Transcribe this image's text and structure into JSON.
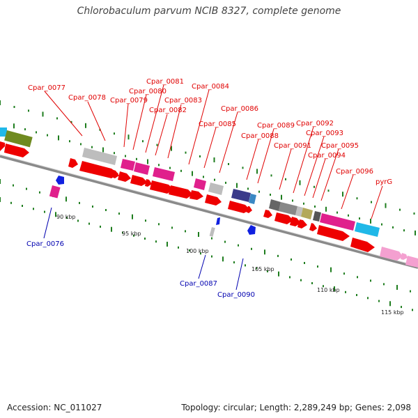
{
  "title": "Chlorobaculum parvum NCIB 8327, complete genome",
  "accession": "Accession: NC_011027",
  "topology": "Topology: circular; Length: 2,289,249 bp; Genes: 2,098",
  "colors": {
    "backbone": "#8a8a8a",
    "tick": "#1e7d1e",
    "label_red": "#e00000",
    "label_blue": "#0000b0",
    "cds_red": "#ee0000",
    "magenta": "#e0208c",
    "grey": "#bdbdbd",
    "cyan": "#20b8e8"
  },
  "kbp_labels": [
    "90 kbp",
    "95 kbp",
    "100 kbp",
    "105 kbp",
    "110 kbp",
    "115 kbp"
  ],
  "genes_above": [
    "Cpar_0077",
    "Cpar_0078",
    "Cpar_0079",
    "Cpar_0080",
    "Cpar_0081",
    "Cpar_0082",
    "Cpar_0083",
    "Cpar_0084",
    "Cpar_0085",
    "Cpar_0086",
    "Cpar_0088",
    "Cpar_0089",
    "Cpar_0091",
    "Cpar_0092",
    "Cpar_0093",
    "Cpar_0094",
    "Cpar_0095",
    "Cpar_0096",
    "pyrG"
  ],
  "genes_below": [
    "Cpar_0076",
    "Cpar_0087",
    "Cpar_0090"
  ]
}
